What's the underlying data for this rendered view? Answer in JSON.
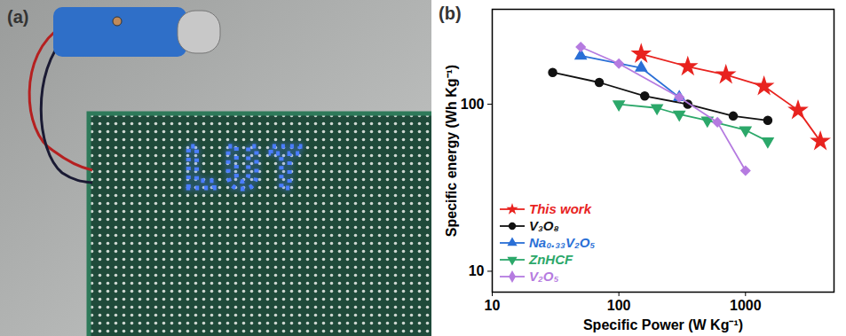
{
  "photo": {
    "label": "(a)",
    "display_text": "LUT"
  },
  "chart_data": {
    "type": "line",
    "title": "(b)",
    "x_label": "Specific Power (W Kg⁻¹)",
    "y_label": "Specific energy (Wh Kg⁻¹)",
    "log": true,
    "grid": false,
    "legend": "lower left",
    "xlim": [
      10,
      5000
    ],
    "xticks": [
      10,
      100,
      1000
    ],
    "ylim": [
      7.5,
      370
    ],
    "yticks": [
      10,
      100
    ],
    "series": [
      {
        "name": "This work",
        "color": "#e8231f",
        "marker": "star",
        "x": [
          150,
          350,
          700,
          1400,
          2600,
          3900
        ],
        "values": [
          200,
          168,
          150,
          128,
          92,
          60
        ]
      },
      {
        "name": "V₃O₈",
        "color": "#111111",
        "marker": "circle",
        "x": [
          30,
          70,
          160,
          350,
          800,
          1500
        ],
        "values": [
          155,
          135,
          112,
          100,
          85,
          80
        ]
      },
      {
        "name": "Na₀.₃₃V₂O₅",
        "color": "#2a6fd6",
        "marker": "triangle",
        "x": [
          50,
          150,
          300
        ],
        "values": [
          195,
          165,
          110
        ]
      },
      {
        "name": "ZnHCF",
        "color": "#2ca86a",
        "marker": "triangle-down",
        "x": [
          100,
          200,
          300,
          500,
          1000,
          1500
        ],
        "values": [
          100,
          95,
          87,
          80,
          70,
          60
        ]
      },
      {
        "name": "V₂O₅",
        "color": "#b57be0",
        "marker": "diamond",
        "x": [
          50,
          100,
          300,
          600,
          1000
        ],
        "values": [
          220,
          175,
          110,
          78,
          40
        ]
      }
    ]
  }
}
